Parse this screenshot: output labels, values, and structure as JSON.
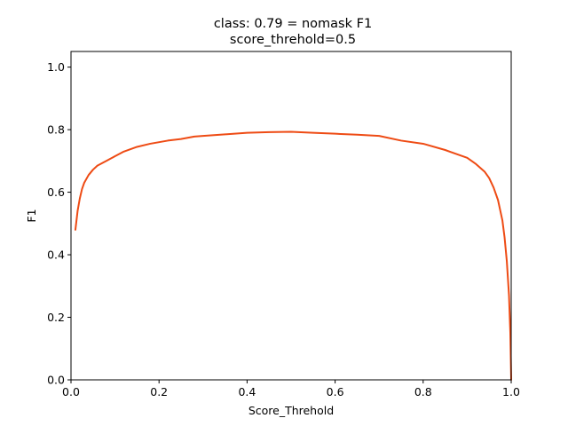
{
  "chart_data": {
    "type": "line",
    "title": "class: 0.79 = nomask F1",
    "subtitle": "score_threhold=0.5",
    "xlabel": "Score_Threhold",
    "ylabel": "F1",
    "xlim": [
      0,
      1.0
    ],
    "ylim": [
      0,
      1.05
    ],
    "xticks": [
      "0.0",
      "0.2",
      "0.4",
      "0.6",
      "0.8",
      "1.0"
    ],
    "yticks": [
      "0.0",
      "0.2",
      "0.4",
      "0.6",
      "0.8",
      "1.0"
    ],
    "grid": false,
    "series": [
      {
        "color": "#ee4b14",
        "x": [
          0.01,
          0.015,
          0.02,
          0.025,
          0.03,
          0.04,
          0.05,
          0.06,
          0.08,
          0.1,
          0.12,
          0.15,
          0.18,
          0.2,
          0.22,
          0.25,
          0.28,
          0.3,
          0.35,
          0.4,
          0.45,
          0.5,
          0.55,
          0.6,
          0.65,
          0.7,
          0.75,
          0.8,
          0.85,
          0.88,
          0.9,
          0.92,
          0.94,
          0.95,
          0.96,
          0.97,
          0.98,
          0.985,
          0.99,
          0.995,
          0.998,
          1.0
        ],
        "y": [
          0.48,
          0.54,
          0.58,
          0.61,
          0.63,
          0.655,
          0.672,
          0.685,
          0.7,
          0.715,
          0.73,
          0.745,
          0.755,
          0.76,
          0.765,
          0.77,
          0.778,
          0.78,
          0.785,
          0.79,
          0.792,
          0.793,
          0.79,
          0.787,
          0.784,
          0.78,
          0.765,
          0.755,
          0.735,
          0.72,
          0.71,
          0.69,
          0.665,
          0.645,
          0.615,
          0.575,
          0.51,
          0.455,
          0.38,
          0.27,
          0.15,
          0.0
        ]
      }
    ]
  }
}
